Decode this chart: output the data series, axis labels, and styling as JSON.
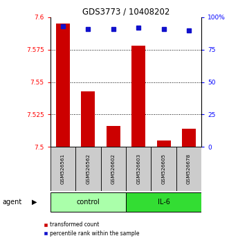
{
  "title": "GDS3773 / 10408202",
  "samples": [
    "GSM526561",
    "GSM526562",
    "GSM526602",
    "GSM526603",
    "GSM526605",
    "GSM526678"
  ],
  "red_values": [
    7.595,
    7.543,
    7.516,
    7.578,
    7.505,
    7.514
  ],
  "blue_values": [
    93,
    91,
    91,
    92,
    91,
    90
  ],
  "ylim_left": [
    7.5,
    7.6
  ],
  "ylim_right": [
    0,
    100
  ],
  "yticks_left": [
    7.5,
    7.525,
    7.55,
    7.575
  ],
  "yticks_left_labels": [
    "7.5",
    "7.525",
    "7.55",
    "7.575"
  ],
  "ytick_top_left": 7.6,
  "ytick_top_label": "7.6",
  "yticks_right": [
    0,
    25,
    50,
    75
  ],
  "yticks_right_labels": [
    "0",
    "25",
    "50",
    "75"
  ],
  "ytick_top_right": 100,
  "ytick_top_right_label": "100%",
  "group_control_color": "#AAFFAA",
  "group_il6_color": "#33DD33",
  "agent_label": "agent",
  "red_color": "#CC0000",
  "blue_color": "#1111CC",
  "legend1": "transformed count",
  "legend2": "percentile rank within the sample",
  "bar_width": 0.55,
  "sample_box_color": "#CCCCCC"
}
